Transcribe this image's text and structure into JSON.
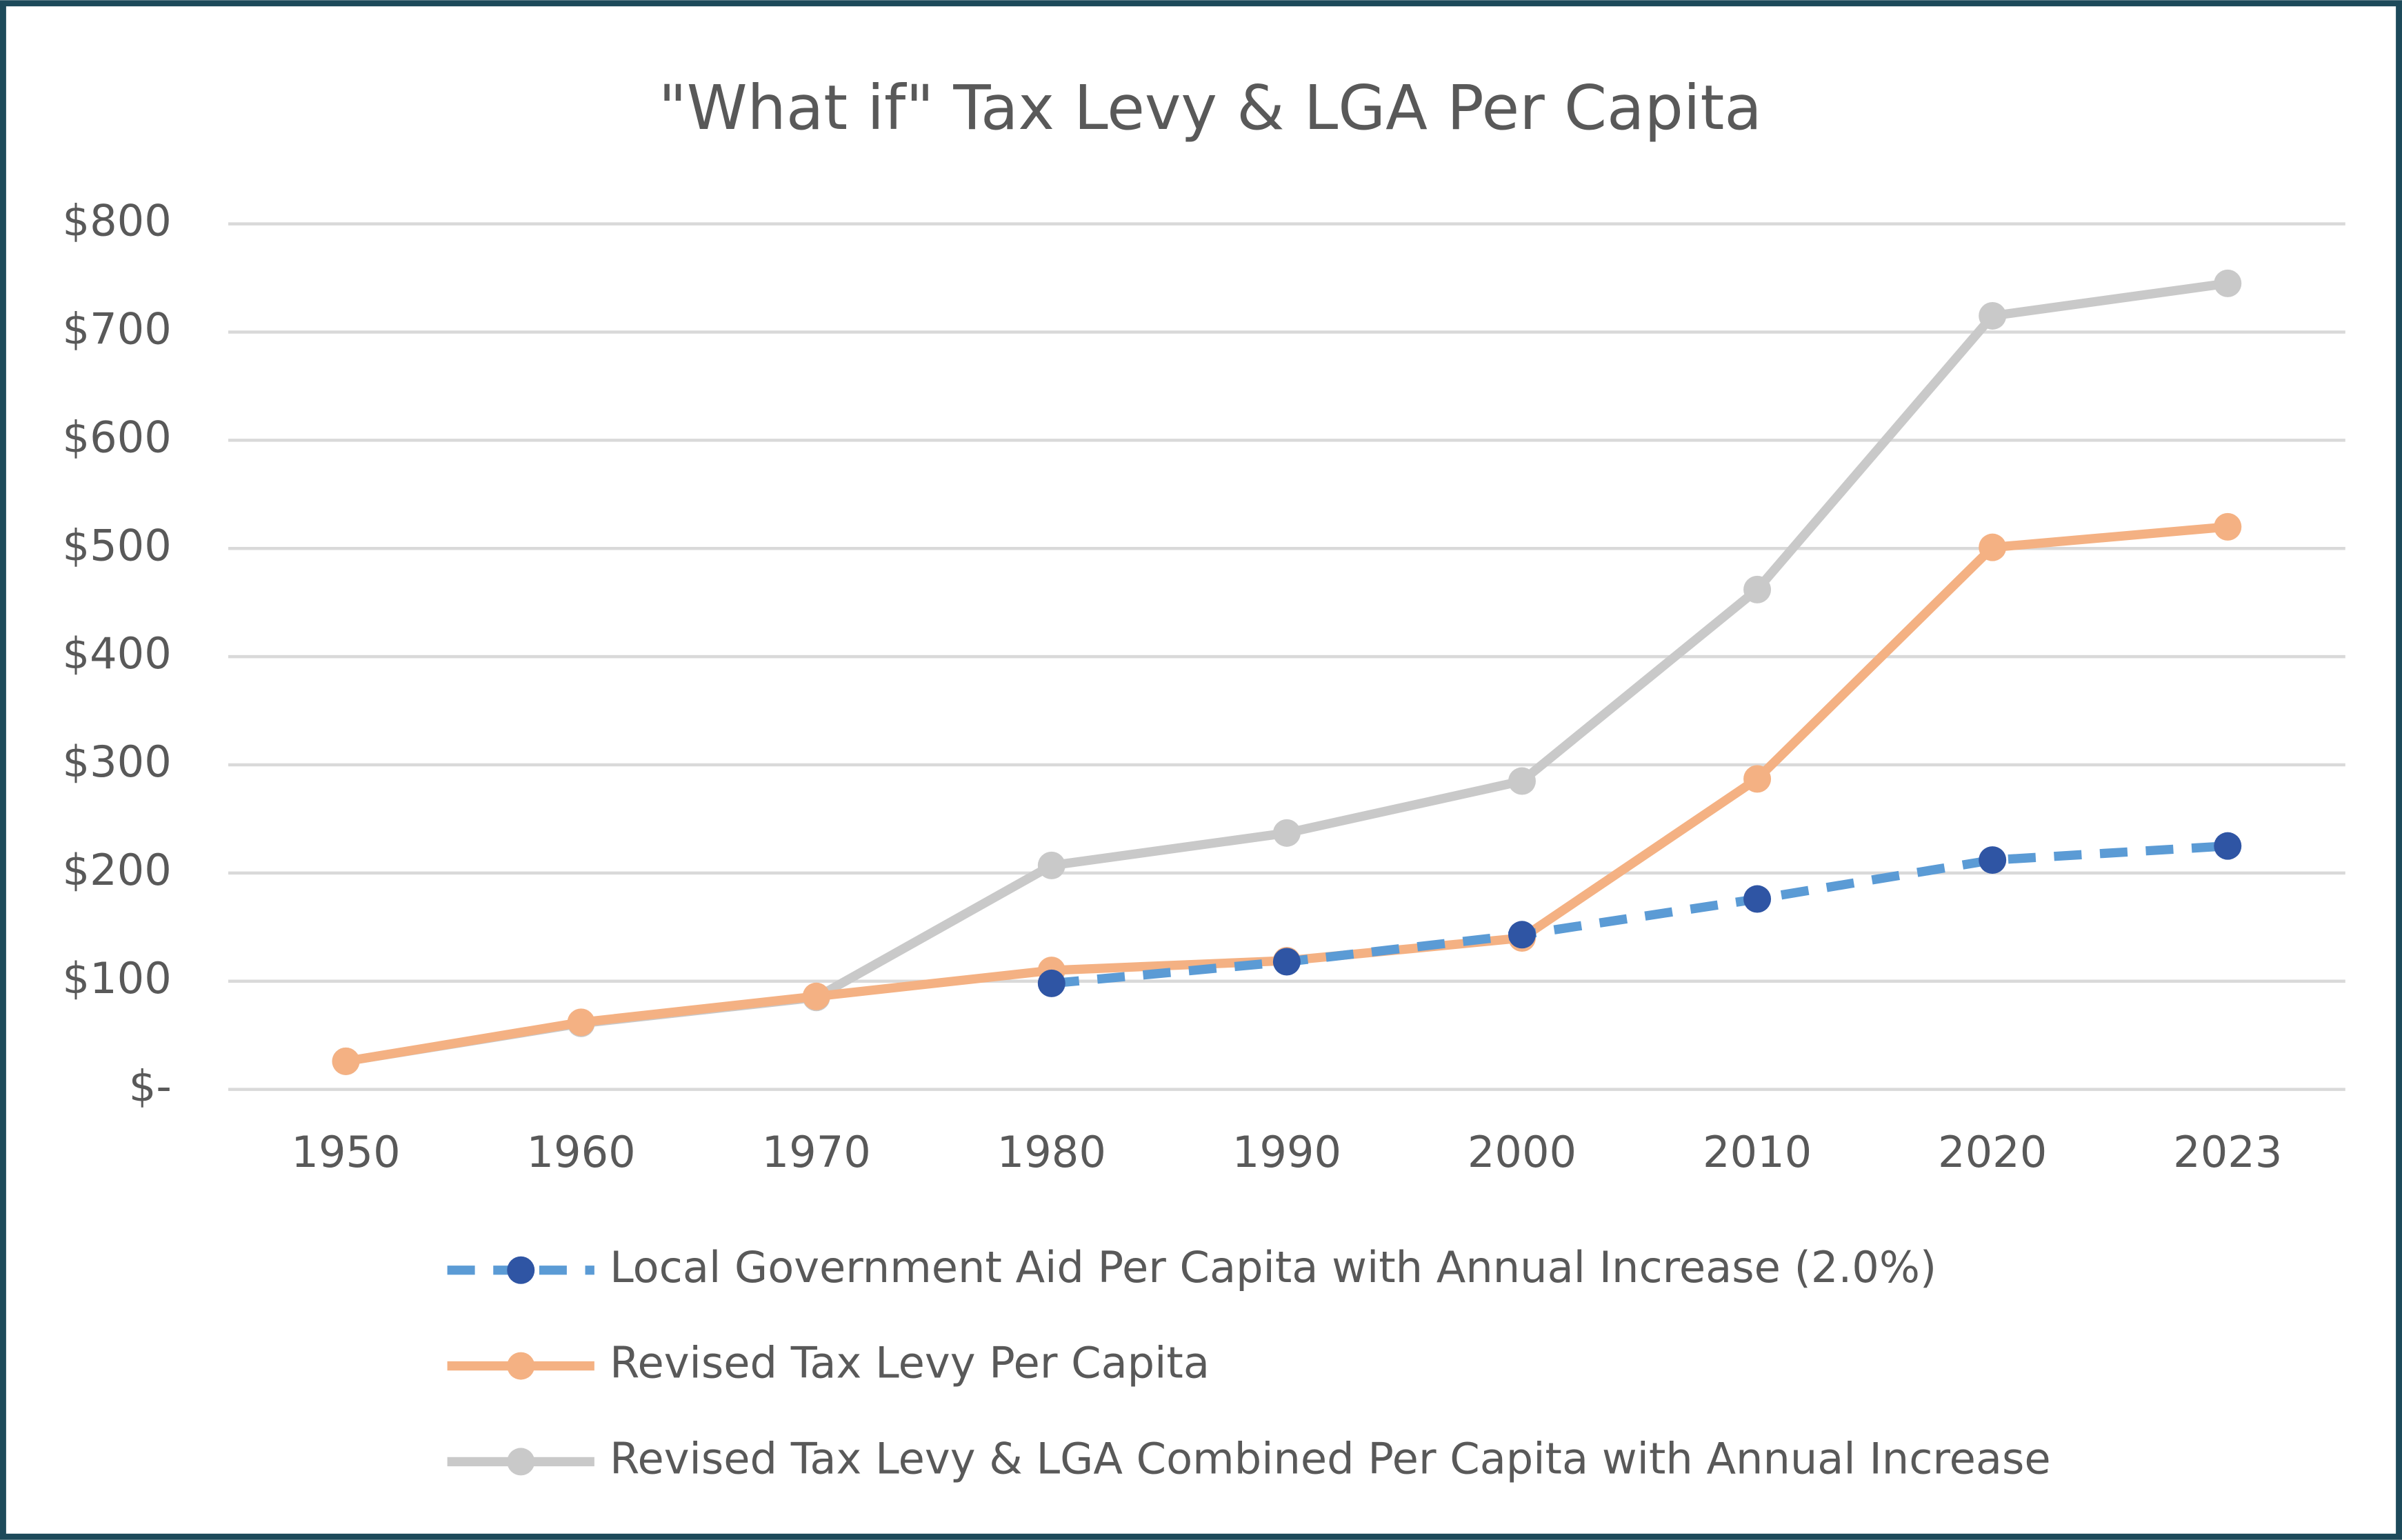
{
  "chart_data": {
    "type": "line",
    "title": "\"What if\" Tax Levy & LGA Per Capita",
    "categories": [
      "1950",
      "1960",
      "1970",
      "1980",
      "1990",
      "2000",
      "2010",
      "2020",
      "2023"
    ],
    "series": [
      {
        "name": "Local Government Aid Per Capita with Annual Increase (2.0%)",
        "color": "#5b9bd5",
        "marker_color": "#2f55a4",
        "dashed": true,
        "values": [
          null,
          null,
          null,
          98,
          118,
          143,
          176,
          212,
          225
        ]
      },
      {
        "name": "Revised Tax Levy Per Capita",
        "color": "#f4b183",
        "marker_color": "#f4b183",
        "dashed": false,
        "values": [
          26,
          62,
          86,
          110,
          119,
          140,
          287,
          501,
          520
        ]
      },
      {
        "name": "Revised Tax Levy & LGA Combined Per Capita with Annual Increase",
        "color": "#c9c9c9",
        "marker_color": "#c9c9c9",
        "dashed": false,
        "values": [
          26,
          61,
          85,
          207,
          237,
          285,
          462,
          715,
          745
        ]
      }
    ],
    "ylim": [
      0,
      800
    ],
    "yticks": [
      {
        "value": 0,
        "label": "$-"
      },
      {
        "value": 100,
        "label": "$100"
      },
      {
        "value": 200,
        "label": "$200"
      },
      {
        "value": 300,
        "label": "$300"
      },
      {
        "value": 400,
        "label": "$400"
      },
      {
        "value": 500,
        "label": "$500"
      },
      {
        "value": 600,
        "label": "$600"
      },
      {
        "value": 700,
        "label": "$700"
      },
      {
        "value": 800,
        "label": "$800"
      }
    ],
    "grid": true,
    "legend": "bottom"
  }
}
